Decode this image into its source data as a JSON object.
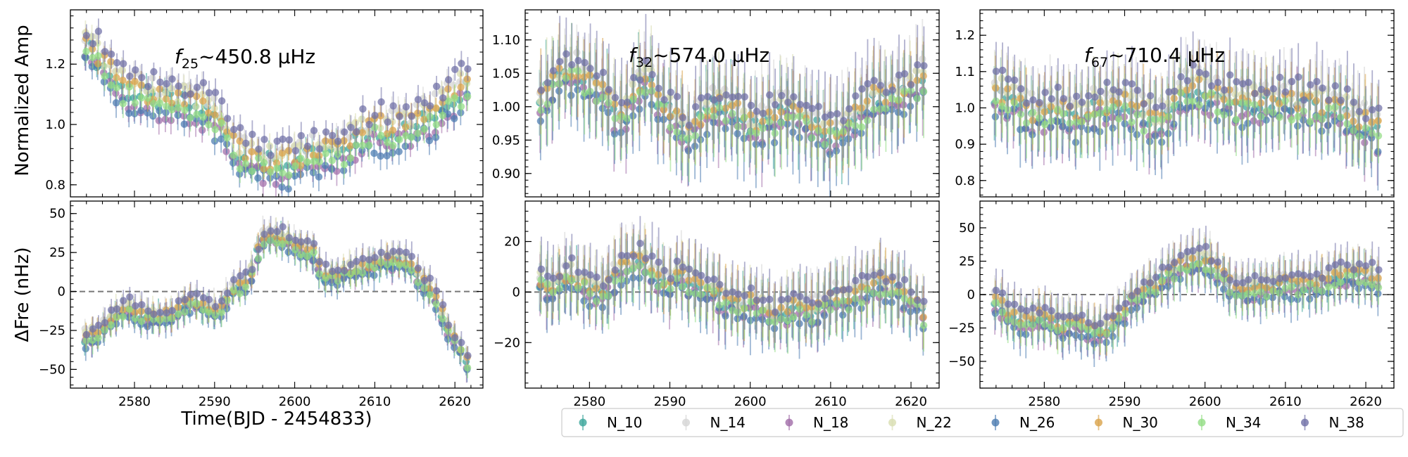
{
  "chart_data": {
    "type": "scatter",
    "xlabel": "Time(BJD - 2454833)",
    "xlim": [
      2572,
      2623.5
    ],
    "xticks": [
      2580,
      2590,
      2600,
      2610,
      2620
    ],
    "xtick_labels": [
      "2580",
      "2590",
      "2600",
      "2610",
      "2620"
    ],
    "row_ylabels": [
      "Normalized Amp",
      "ΔFre (nHz)"
    ],
    "times": [
      2573.9,
      2574.7,
      2575.4,
      2576.2,
      2577.0,
      2577.7,
      2578.5,
      2579.3,
      2580.0,
      2580.8,
      2581.6,
      2582.3,
      2583.1,
      2583.9,
      2584.6,
      2585.4,
      2586.2,
      2586.9,
      2587.7,
      2588.5,
      2589.2,
      2590.0,
      2590.8,
      2591.5,
      2592.3,
      2593.1,
      2593.8,
      2594.6,
      2595.4,
      2596.1,
      2596.9,
      2597.7,
      2598.4,
      2599.2,
      2600.0,
      2600.7,
      2601.5,
      2602.3,
      2603.0,
      2603.8,
      2604.6,
      2605.3,
      2606.1,
      2606.9,
      2607.6,
      2608.4,
      2609.2,
      2609.9,
      2610.7,
      2611.5,
      2612.2,
      2613.0,
      2613.8,
      2614.5,
      2615.3,
      2616.1,
      2616.8,
      2617.6,
      2618.4,
      2619.1,
      2619.9,
      2620.7,
      2621.5
    ],
    "series": [
      {
        "name": "N_10",
        "color": "#3aa59a",
        "offset": 0.0
      },
      {
        "name": "N_14",
        "color": "#d4d4d4",
        "offset": 0.9
      },
      {
        "name": "N_18",
        "color": "#a06ba7",
        "offset": -0.7
      },
      {
        "name": "N_22",
        "color": "#d8ddb0",
        "offset": 0.6
      },
      {
        "name": "N_26",
        "color": "#4a7ab0",
        "offset": -1.0
      },
      {
        "name": "N_30",
        "color": "#d9a24a",
        "offset": 0.3
      },
      {
        "name": "N_34",
        "color": "#92dd84",
        "offset": -0.4
      },
      {
        "name": "N_38",
        "color": "#6f6fa6",
        "offset": 1.2
      }
    ],
    "panels": [
      {
        "id": "amp-25",
        "row": 0,
        "col": 0,
        "title": "f25~450.8 μHz",
        "title_italic": "f",
        "title_sub": "25",
        "title_rest": "~450.8 μHz",
        "ylim": [
          0.76,
          1.38
        ],
        "yticks": [
          0.8,
          1.0,
          1.2
        ],
        "ytick_labels": [
          "0.8",
          "1.0",
          "1.2"
        ],
        "zero_line": false,
        "spread": 0.05,
        "err": [
          0.03,
          0.05
        ],
        "trend": [
          1.26,
          1.24,
          1.22,
          1.19,
          1.17,
          1.14,
          1.12,
          1.11,
          1.1,
          1.09,
          1.09,
          1.08,
          1.08,
          1.08,
          1.08,
          1.07,
          1.07,
          1.06,
          1.05,
          1.05,
          1.04,
          1.03,
          1.01,
          0.97,
          0.92,
          0.9,
          0.89,
          0.89,
          0.88,
          0.87,
          0.87,
          0.87,
          0.87,
          0.87,
          0.88,
          0.88,
          0.88,
          0.89,
          0.89,
          0.9,
          0.91,
          0.91,
          0.92,
          0.94,
          0.95,
          0.96,
          0.97,
          0.98,
          0.98,
          0.98,
          0.98,
          0.98,
          0.98,
          0.99,
          1.0,
          1.01,
          1.02,
          1.04,
          1.06,
          1.08,
          1.09,
          1.11,
          1.12
        ]
      },
      {
        "id": "amp-32",
        "row": 0,
        "col": 1,
        "title": "f32~574.0 μHz",
        "title_italic": "f",
        "title_sub": "32",
        "title_rest": "~574.0 μHz",
        "ylim": [
          0.865,
          1.145
        ],
        "yticks": [
          0.9,
          0.95,
          1.0,
          1.05,
          1.1
        ],
        "ytick_labels": [
          "0.90",
          "0.95",
          "1.00",
          "1.05",
          "1.10"
        ],
        "zero_line": false,
        "spread": 0.02,
        "err": [
          0.04,
          0.07
        ],
        "trend": [
          1.01,
          1.02,
          1.03,
          1.04,
          1.05,
          1.05,
          1.05,
          1.04,
          1.03,
          1.03,
          1.02,
          1.01,
          0.99,
          0.98,
          0.99,
          1.01,
          1.03,
          1.04,
          1.03,
          1.01,
          1.0,
          0.99,
          0.98,
          0.97,
          0.96,
          0.97,
          0.98,
          0.99,
          1.0,
          1.0,
          1.0,
          1.0,
          0.99,
          0.98,
          0.97,
          0.97,
          0.97,
          0.98,
          0.98,
          0.99,
          0.99,
          0.99,
          0.98,
          0.98,
          0.97,
          0.97,
          0.96,
          0.96,
          0.96,
          0.96,
          0.97,
          0.98,
          0.99,
          1.0,
          1.01,
          1.01,
          1.01,
          1.01,
          1.01,
          1.02,
          1.02,
          1.03,
          1.04
        ]
      },
      {
        "id": "amp-67",
        "row": 0,
        "col": 2,
        "title": "f67~710.4 μHz",
        "title_italic": "f",
        "title_sub": "67",
        "title_rest": "~710.4 μHz",
        "ylim": [
          0.755,
          1.27
        ],
        "yticks": [
          0.8,
          0.9,
          1.0,
          1.1,
          1.2
        ],
        "ytick_labels": [
          "0.8",
          "0.9",
          "1.0",
          "1.1",
          "1.2"
        ],
        "zero_line": false,
        "spread": 0.04,
        "err": [
          0.07,
          0.11
        ],
        "trend": [
          1.04,
          1.03,
          1.02,
          1.01,
          1.0,
          0.99,
          0.98,
          0.98,
          0.98,
          0.99,
          0.99,
          0.98,
          0.97,
          0.96,
          0.97,
          0.98,
          0.99,
          1.0,
          1.0,
          1.0,
          1.0,
          1.01,
          1.0,
          0.99,
          0.98,
          0.97,
          0.96,
          0.96,
          0.97,
          1.0,
          1.03,
          1.05,
          1.05,
          1.05,
          1.04,
          1.03,
          1.02,
          1.02,
          1.02,
          1.01,
          1.01,
          1.01,
          1.01,
          1.01,
          1.01,
          1.01,
          1.01,
          1.01,
          1.01,
          1.01,
          1.0,
          1.0,
          1.0,
          1.0,
          1.0,
          1.0,
          0.99,
          0.98,
          0.97,
          0.96,
          0.95,
          0.94,
          0.93
        ]
      },
      {
        "id": "fre-25",
        "row": 1,
        "col": 0,
        "ylim": [
          -62,
          58
        ],
        "yticks": [
          -50,
          -25,
          0,
          25,
          50
        ],
        "ytick_labels": [
          "−50",
          "−25",
          "0",
          "25",
          "50"
        ],
        "zero_line": true,
        "spread": 4,
        "err": [
          6,
          10
        ],
        "trend": [
          -30,
          -28,
          -27,
          -23,
          -18,
          -15,
          -12,
          -11,
          -13,
          -15,
          -16,
          -17,
          -17,
          -16,
          -15,
          -13,
          -10,
          -8,
          -8,
          -10,
          -12,
          -13,
          -12,
          -6,
          1,
          3,
          5,
          12,
          25,
          33,
          36,
          35,
          34,
          32,
          30,
          28,
          27,
          25,
          15,
          10,
          9,
          10,
          11,
          13,
          14,
          15,
          16,
          17,
          18,
          19,
          19,
          19,
          18,
          15,
          10,
          5,
          2,
          -5,
          -15,
          -25,
          -32,
          -38,
          -45
        ]
      },
      {
        "id": "fre-32",
        "row": 1,
        "col": 1,
        "ylim": [
          -38,
          36
        ],
        "yticks": [
          -20,
          0,
          20
        ],
        "ytick_labels": [
          "−20",
          "0",
          "20"
        ],
        "zero_line": true,
        "spread": 4,
        "err": [
          8,
          14
        ],
        "trend": [
          4,
          2,
          0,
          3,
          5,
          6,
          4,
          3,
          1,
          0,
          -2,
          2,
          5,
          8,
          10,
          11,
          12,
          11,
          8,
          6,
          4,
          3,
          5,
          6,
          4,
          3,
          2,
          1,
          0,
          -2,
          -4,
          -5,
          -6,
          -6,
          -5,
          -6,
          -7,
          -8,
          -10,
          -9,
          -8,
          -7,
          -6,
          -7,
          -8,
          -7,
          -5,
          -3,
          -2,
          -3,
          -4,
          -2,
          0,
          1,
          2,
          3,
          2,
          1,
          0,
          -2,
          -4,
          -6,
          -9
        ]
      },
      {
        "id": "fre-67",
        "row": 1,
        "col": 2,
        "ylim": [
          -70,
          70
        ],
        "yticks": [
          -50,
          -25,
          0,
          25,
          50
        ],
        "ytick_labels": [
          "−50",
          "−25",
          "0",
          "25",
          "50"
        ],
        "zero_line": true,
        "spread": 6,
        "err": [
          12,
          18
        ],
        "trend": [
          -5,
          -10,
          -15,
          -18,
          -20,
          -20,
          -18,
          -17,
          -19,
          -20,
          -22,
          -24,
          -23,
          -22,
          -24,
          -26,
          -27,
          -28,
          -26,
          -22,
          -18,
          -12,
          -5,
          -2,
          0,
          3,
          6,
          10,
          15,
          18,
          20,
          22,
          24,
          25,
          25,
          22,
          18,
          12,
          7,
          5,
          4,
          3,
          3,
          4,
          5,
          6,
          7,
          7,
          6,
          6,
          6,
          7,
          8,
          9,
          10,
          12,
          13,
          14,
          14,
          14,
          14,
          13,
          8
        ]
      }
    ],
    "legend_position": "bottom-right"
  }
}
